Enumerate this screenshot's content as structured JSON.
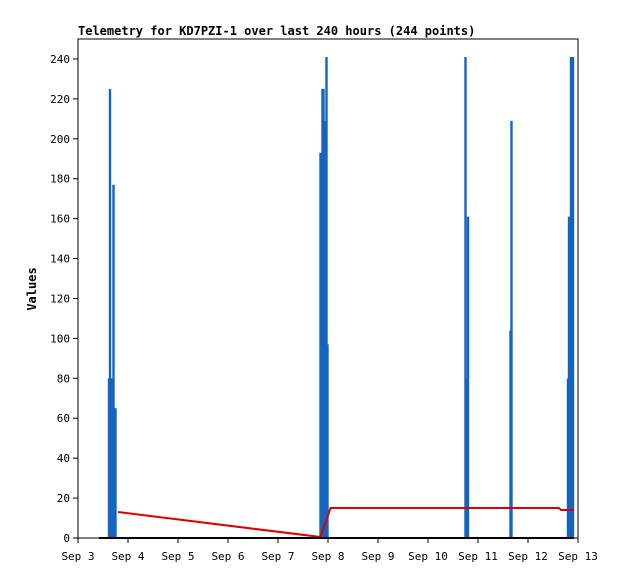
{
  "chart_data": {
    "type": "line",
    "title": "Telemetry for KD7PZI-1 over last 240 hours (244 points)",
    "xlabel": "",
    "ylabel": "Values",
    "xlim": [
      3,
      13
    ],
    "ylim": [
      0,
      250
    ],
    "x_ticks": [
      {
        "value": 3,
        "label": "Sep 3"
      },
      {
        "value": 4,
        "label": "Sep 4"
      },
      {
        "value": 5,
        "label": "Sep 5"
      },
      {
        "value": 6,
        "label": "Sep 6"
      },
      {
        "value": 7,
        "label": "Sep 7"
      },
      {
        "value": 8,
        "label": "Sep 8"
      },
      {
        "value": 9,
        "label": "Sep 9"
      },
      {
        "value": 10,
        "label": "Sep 10"
      },
      {
        "value": 11,
        "label": "Sep 11"
      },
      {
        "value": 12,
        "label": "Sep 12"
      },
      {
        "value": 13,
        "label": "Sep 13"
      }
    ],
    "y_ticks": [
      0,
      20,
      40,
      60,
      80,
      100,
      120,
      140,
      160,
      180,
      200,
      220,
      240
    ],
    "grid": false,
    "legend": "none",
    "series": [
      {
        "color": "#1565c0",
        "style": "spikes",
        "points": [
          [
            3.62,
            80
          ],
          [
            3.64,
            225
          ],
          [
            3.66,
            65
          ],
          [
            3.68,
            80
          ],
          [
            3.71,
            177
          ],
          [
            3.73,
            65
          ],
          [
            3.75,
            65
          ],
          [
            7.85,
            193
          ],
          [
            7.87,
            112
          ],
          [
            7.89,
            225
          ],
          [
            7.91,
            225
          ],
          [
            7.93,
            209
          ],
          [
            7.95,
            193
          ],
          [
            7.97,
            241
          ],
          [
            7.99,
            97
          ],
          [
            10.75,
            241
          ],
          [
            10.78,
            80
          ],
          [
            10.8,
            161
          ],
          [
            11.65,
            104
          ],
          [
            11.67,
            209
          ],
          [
            12.8,
            80
          ],
          [
            12.82,
            161
          ],
          [
            12.84,
            48
          ],
          [
            12.86,
            241
          ],
          [
            12.88,
            225
          ],
          [
            12.9,
            241
          ]
        ]
      },
      {
        "color": "#e00000",
        "style": "line",
        "points": [
          [
            3.8,
            13
          ],
          [
            7.85,
            0.5
          ],
          [
            8.05,
            15
          ],
          [
            12.62,
            15
          ],
          [
            12.66,
            14
          ],
          [
            12.92,
            14
          ]
        ]
      },
      {
        "color": "#000000",
        "style": "line",
        "points": [
          [
            3.42,
            0
          ],
          [
            12.92,
            0
          ]
        ]
      }
    ]
  }
}
